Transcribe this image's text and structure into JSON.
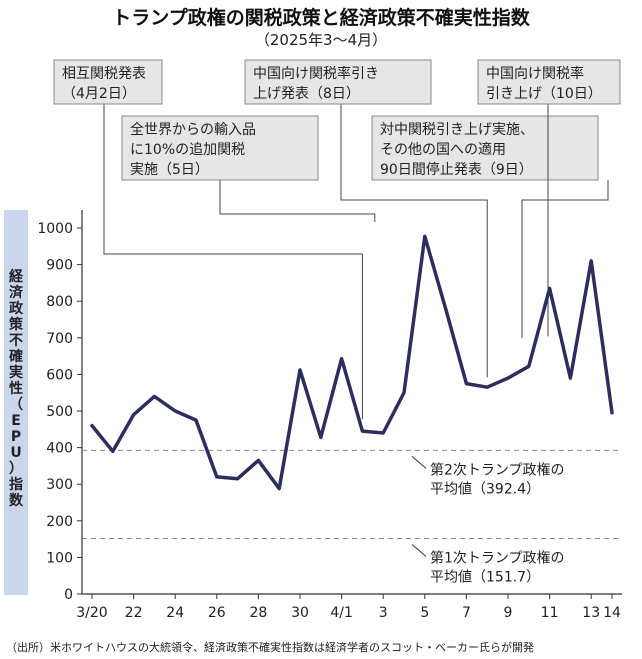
{
  "chart_data": {
    "type": "line",
    "title": "トランプ政権の関税政策と経済政策不確実性指数",
    "subtitle": "（2025年3～4月）",
    "ylabel": "経済政策不確実性（EPU）指数",
    "ylim": [
      0,
      1000
    ],
    "yticks": [
      0,
      100,
      200,
      300,
      400,
      500,
      600,
      700,
      800,
      900,
      1000
    ],
    "x_tick_labels": [
      "3/20",
      "22",
      "24",
      "26",
      "28",
      "30",
      "4/1",
      "3",
      "5",
      "7",
      "9",
      "11",
      "13",
      "14"
    ],
    "x_tick_index": [
      0,
      2,
      4,
      6,
      8,
      10,
      12,
      14,
      16,
      18,
      20,
      22,
      24,
      25
    ],
    "x": [
      "3/20",
      "3/21",
      "3/22",
      "3/23",
      "3/24",
      "3/25",
      "3/26",
      "3/27",
      "3/28",
      "3/29",
      "3/30",
      "3/31",
      "4/1",
      "4/2",
      "4/3",
      "4/4",
      "4/5",
      "4/6",
      "4/7",
      "4/8",
      "4/9",
      "4/10",
      "4/11",
      "4/12",
      "4/13",
      "4/14"
    ],
    "values": [
      460,
      390,
      490,
      540,
      500,
      475,
      320,
      315,
      365,
      288,
      612,
      428,
      643,
      445,
      440,
      550,
      977,
      780,
      575,
      565,
      590,
      622,
      835,
      590,
      910,
      495
    ],
    "line_color": "#2b2f5e",
    "reference_lines": [
      {
        "value": 392.4,
        "label_lines": [
          "第2次トランプ政権の",
          "平均値（392.4）"
        ]
      },
      {
        "value": 151.7,
        "label_lines": [
          "第1次トランプ政権の",
          "平均値（151.7）"
        ]
      }
    ],
    "annotations": [
      {
        "lines": [
          "相互関税発表",
          "（4月2日）"
        ],
        "target_index": 13
      },
      {
        "lines": [
          "全世界からの輸入品",
          "に10%の追加関税",
          "実施（5日）"
        ],
        "target_index": 16
      },
      {
        "lines": [
          "中国向け関税率引き",
          "上げ発表（8日）"
        ],
        "target_index": 19
      },
      {
        "lines": [
          "対中関税引き上げ実施、",
          "その他の国への適用",
          "90日間停止発表（9日）"
        ],
        "target_index": 20
      },
      {
        "lines": [
          "中国向け関税率",
          "引き上げ（10日）"
        ],
        "target_index": 21
      }
    ],
    "source": "（出所）米ホワイトハウスの大統領令、経済政策不確実性指数は経済学者のスコット・ベーカー氏らが開発"
  }
}
